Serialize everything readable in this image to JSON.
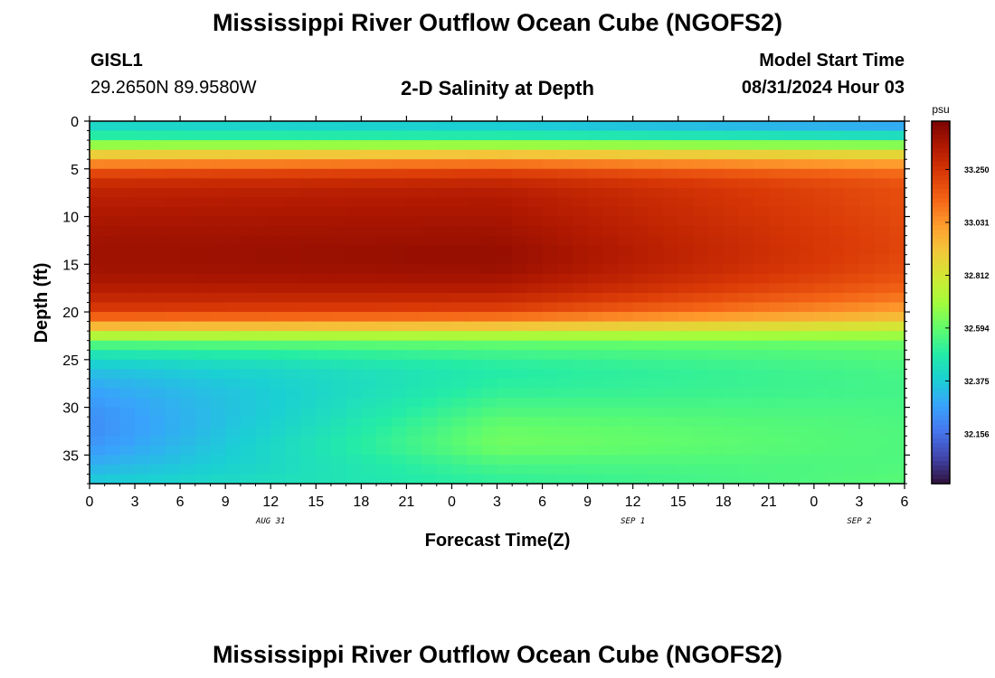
{
  "page": {
    "title": "Mississippi River Outflow Ocean Cube (NGOFS2)",
    "station_name": "GISL1",
    "station_coords": "29.2650N  89.9580W",
    "plot_title": "2-D Salinity at Depth",
    "model_start_label": "Model Start Time",
    "model_start_value": "08/31/2024 Hour 03",
    "footer_title": "Mississippi River Outflow Ocean Cube (NGOFS2)"
  },
  "chart_data": {
    "type": "heatmap",
    "title": "2-D Salinity at Depth",
    "xlabel": "Forecast Time(Z)",
    "ylabel": "Depth (ft)",
    "x_ticks": [
      "0",
      "3",
      "6",
      "9",
      "12",
      "15",
      "18",
      "21",
      "0",
      "3",
      "6",
      "9",
      "12",
      "15",
      "18",
      "21",
      "0",
      "3",
      "6"
    ],
    "x_hours": [
      0,
      54
    ],
    "date_labels": [
      {
        "label": "AUG 31",
        "hour": 12
      },
      {
        "label": "SEP 1",
        "hour": 36
      },
      {
        "label": "SEP 2",
        "hour": 51
      }
    ],
    "y_ticks": [
      0,
      5,
      10,
      15,
      20,
      25,
      30,
      35
    ],
    "ylim": [
      0,
      38
    ],
    "colorbar": {
      "unit": "psu",
      "min": 31.95,
      "max": 33.45,
      "ticks": [
        33.25,
        33.031,
        32.812,
        32.594,
        32.375,
        32.156
      ],
      "tick_labels": [
        "33.250",
        "33.031",
        "32.812",
        "32.594",
        "32.375",
        "32.156"
      ],
      "colormap": [
        "#30123b",
        "#4145ab",
        "#4675ed",
        "#39a2fc",
        "#1bcfd4",
        "#24eca6",
        "#61fc6c",
        "#a4fc3b",
        "#d1e834",
        "#f3c63a",
        "#fe9b2d",
        "#f36315",
        "#d93806",
        "#b11901",
        "#7a0402"
      ]
    },
    "salinity_profile": {
      "depth_ft": [
        0,
        1,
        2,
        3,
        4,
        5,
        6,
        7,
        8,
        10,
        12,
        14,
        16,
        18,
        20,
        21,
        22,
        23,
        24,
        26,
        28,
        30,
        32,
        34,
        36,
        38
      ],
      "values_start": [
        32.4,
        32.42,
        32.55,
        32.8,
        32.98,
        33.15,
        33.25,
        33.3,
        33.32,
        33.35,
        33.37,
        33.38,
        33.37,
        33.32,
        33.22,
        33.05,
        32.85,
        32.62,
        32.48,
        32.35,
        32.28,
        32.24,
        32.22,
        32.24,
        32.3,
        32.38
      ],
      "values_mid": [
        32.36,
        32.4,
        32.55,
        32.82,
        33.02,
        33.18,
        33.27,
        33.32,
        33.34,
        33.36,
        33.38,
        33.4,
        33.38,
        33.32,
        33.2,
        33.02,
        32.82,
        32.62,
        32.55,
        32.48,
        32.5,
        32.55,
        32.6,
        32.62,
        32.55,
        32.5
      ],
      "values_end": [
        32.25,
        32.34,
        32.52,
        32.78,
        32.95,
        33.08,
        33.15,
        33.18,
        33.18,
        33.19,
        33.2,
        33.2,
        33.18,
        33.12,
        33.0,
        32.88,
        32.75,
        32.62,
        32.58,
        32.55,
        32.54,
        32.55,
        32.56,
        32.56,
        32.56,
        32.58
      ]
    }
  }
}
